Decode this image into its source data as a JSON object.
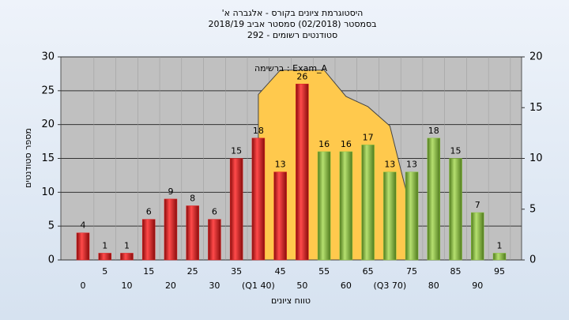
{
  "chart_data": {
    "type": "bar",
    "title": "היסטוגרמת ציונים בקורס - אלגברה א'",
    "subtitle": "בסמסטר (02/2018) סמסטר אביב 2018/19",
    "subtitle2": "סטודנטים רשומים - 292",
    "annotation": "ברשימה : Exam_A",
    "y_label": "מספר סטודנטים",
    "x_label": "טווח ציונים",
    "categories": [
      "0",
      "5",
      "10",
      "15",
      "20",
      "25",
      "30",
      "35",
      "(Q1 40)",
      "45",
      "50",
      "55",
      "60",
      "65",
      "(Q3 70)",
      "75",
      "80",
      "85",
      "90",
      "95"
    ],
    "series": [
      {
        "color": "#e02020",
        "values": [
          4,
          1,
          1,
          6,
          9,
          8,
          6,
          15,
          18,
          13,
          26,
          null,
          null,
          null,
          null,
          null,
          null,
          null,
          null,
          null
        ]
      },
      {
        "color": "#8cc63f",
        "values": [
          null,
          null,
          null,
          null,
          null,
          null,
          null,
          null,
          null,
          null,
          null,
          16,
          16,
          17,
          13,
          13,
          18,
          15,
          7,
          1
        ]
      },
      {
        "type": "area",
        "axis": "y2",
        "color": "#ffc94d",
        "values": [
          null,
          null,
          null,
          null,
          null,
          null,
          null,
          null,
          16.3,
          18.7,
          18.7,
          18.7,
          16.1,
          15.1,
          13.2,
          4.6,
          null,
          null,
          null,
          null
        ]
      }
    ],
    "ylim": [
      0,
      30
    ],
    "yticks": [
      0,
      5,
      10,
      15,
      20,
      25,
      30
    ],
    "y2lim": [
      0,
      20
    ],
    "y2ticks": [
      0,
      5,
      10,
      15,
      20
    ],
    "grid": true
  }
}
